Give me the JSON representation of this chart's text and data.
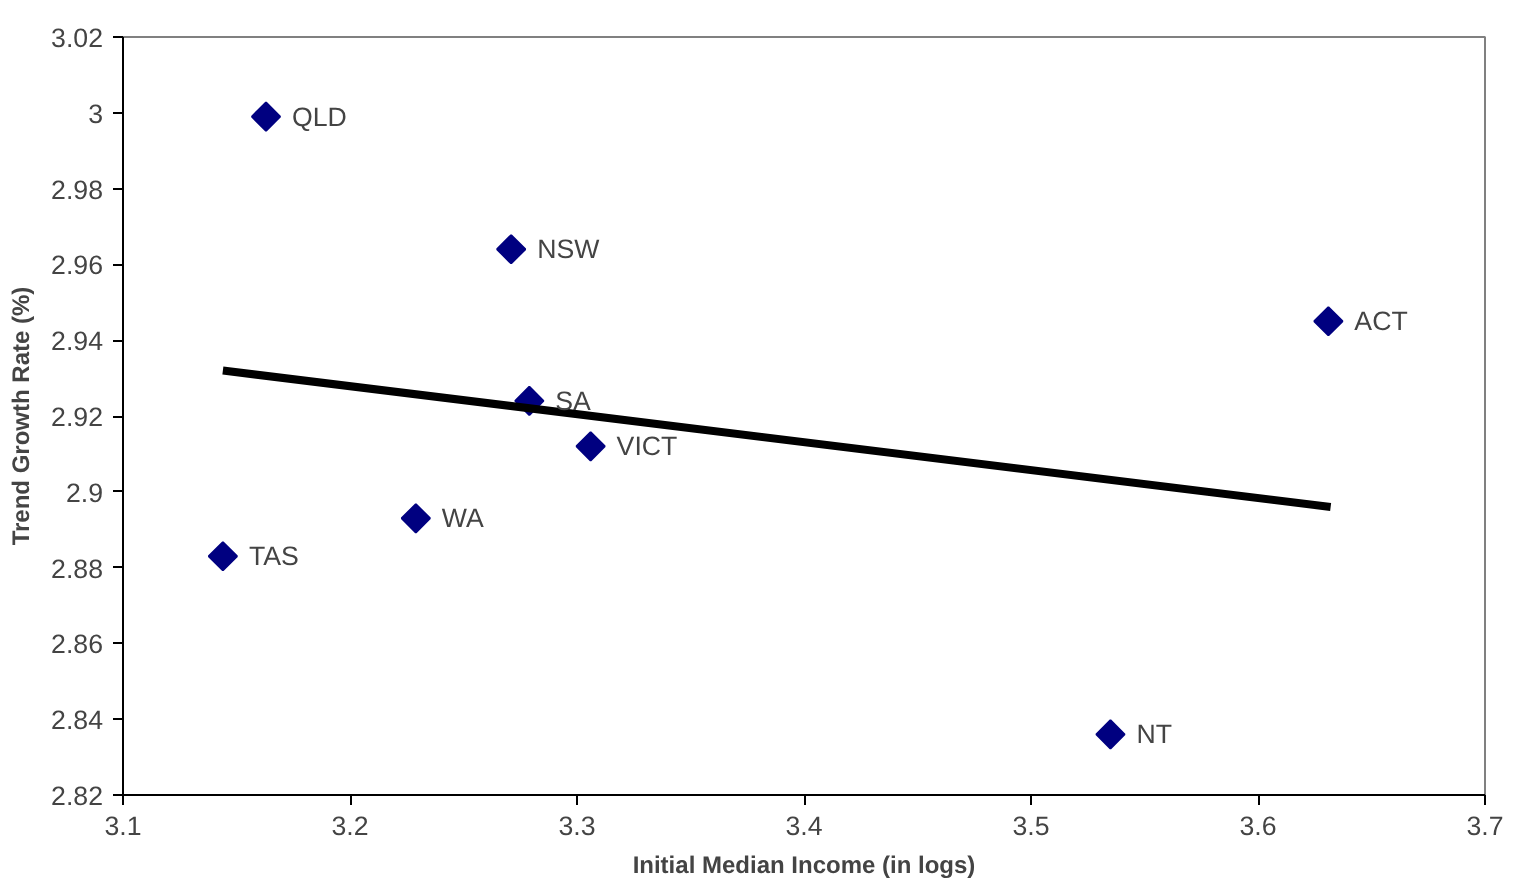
{
  "chart_data": {
    "type": "scatter",
    "xlabel": "Initial Median Income (in logs)",
    "ylabel": "Trend Growth Rate (%)",
    "xlim": [
      3.1,
      3.7
    ],
    "xticks": [
      3.1,
      3.2,
      3.3,
      3.4,
      3.5,
      3.6,
      3.7
    ],
    "ylim": [
      2.82,
      3.02
    ],
    "yticks": [
      2.82,
      2.84,
      2.86,
      2.88,
      2.9,
      2.92,
      2.94,
      2.96,
      2.98,
      {
        "value": 3,
        "label": "3"
      },
      3.02
    ],
    "grid": false,
    "series": [
      {
        "marker": "diamond",
        "color": "#000080",
        "x": [
          3.163,
          3.271,
          3.279,
          3.306,
          3.229,
          3.144,
          3.631,
          3.535
        ],
        "values": [
          2.999,
          2.964,
          2.924,
          2.912,
          2.893,
          2.883,
          2.945,
          2.836
        ]
      },
      {
        "type": "line",
        "marker": "none",
        "color": "#000000",
        "x": [
          3.144,
          3.632
        ],
        "values": [
          2.932,
          2.896
        ]
      }
    ],
    "annotations": [
      {
        "text": "QLD",
        "x": 3.163,
        "y": 2.999
      },
      {
        "text": "NSW",
        "x": 3.271,
        "y": 2.964
      },
      {
        "text": "SA",
        "x": 3.279,
        "y": 2.924
      },
      {
        "text": "VICT",
        "x": 3.306,
        "y": 2.912
      },
      {
        "text": "WA",
        "x": 3.229,
        "y": 2.893
      },
      {
        "text": "TAS",
        "x": 3.144,
        "y": 2.883
      },
      {
        "text": "ACT",
        "x": 3.631,
        "y": 2.945
      },
      {
        "text": "NT",
        "x": 3.535,
        "y": 2.836
      }
    ]
  }
}
